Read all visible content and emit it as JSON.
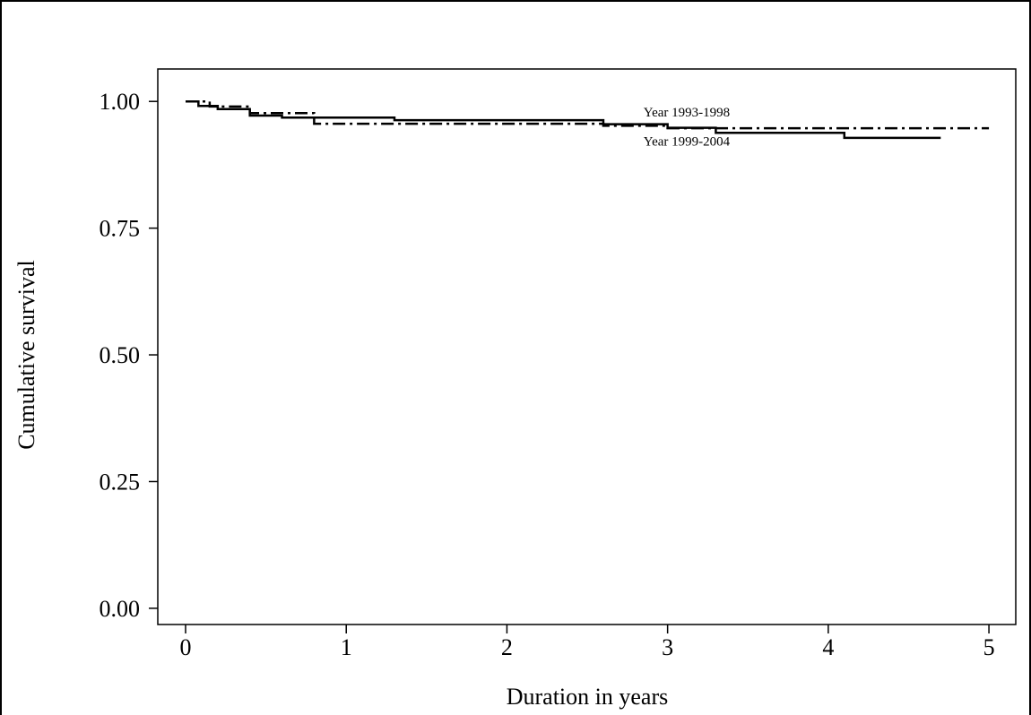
{
  "chart_data": {
    "type": "step",
    "x_label": "Duration in years",
    "y_label": "Cumulative survival",
    "xlim": [
      -0.173,
      5.167
    ],
    "ylim": [
      -0.032,
      1.064
    ],
    "xticks": [
      0,
      1,
      2,
      3,
      4,
      5
    ],
    "yticks": [
      {
        "value": 0,
        "label": "0.00"
      },
      {
        "value": 0.25,
        "label": "0.25"
      },
      {
        "value": 0.5,
        "label": "0.50"
      },
      {
        "value": 0.75,
        "label": "0.75"
      },
      {
        "value": 1,
        "label": "1.00"
      }
    ],
    "series": [
      {
        "color": "#000000",
        "dash": "solid",
        "x": [
          0,
          0.08,
          0.2,
          0.4,
          0.6,
          1.3,
          2.6,
          3.0,
          3.3,
          4.1,
          4.7
        ],
        "values": [
          1.0,
          0.991,
          0.985,
          0.972,
          0.968,
          0.963,
          0.955,
          0.948,
          0.938,
          0.928,
          0.928
        ]
      },
      {
        "color": "#000000",
        "dash": "dashdot",
        "x": [
          0,
          0.15,
          0.4,
          0.8,
          2.6,
          3.0,
          5.0
        ],
        "values": [
          1.0,
          0.99,
          0.977,
          0.956,
          0.952,
          0.947,
          0.947
        ]
      }
    ],
    "annotations": [
      {
        "text": "Year 1993-1998",
        "x": 2.85,
        "y": 0.97
      },
      {
        "text": "Year 1999-2004",
        "x": 2.85,
        "y": 0.913
      }
    ]
  }
}
